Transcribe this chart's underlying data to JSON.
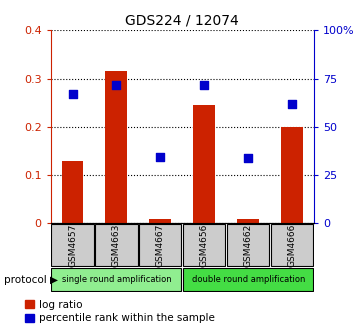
{
  "title": "GDS224 / 12074",
  "samples": [
    "GSM4657",
    "GSM4663",
    "GSM4667",
    "GSM4656",
    "GSM4662",
    "GSM4666"
  ],
  "log_ratio": [
    0.13,
    0.315,
    0.01,
    0.245,
    0.01,
    0.2
  ],
  "percentile_rank_scaled": [
    0.268,
    0.287,
    0.137,
    0.287,
    0.135,
    0.247
  ],
  "bar_color": "#cc2200",
  "scatter_color": "#0000cc",
  "ylim_left": [
    0,
    0.4
  ],
  "ylim_right": [
    0,
    100
  ],
  "yticks_left": [
    0,
    0.1,
    0.2,
    0.3,
    0.4
  ],
  "ytick_labels_left": [
    "0",
    "0.1",
    "0.2",
    "0.3",
    "0.4"
  ],
  "yticks_right": [
    0,
    25,
    50,
    75,
    100
  ],
  "ytick_labels_right": [
    "0",
    "25",
    "50",
    "75",
    "100%"
  ],
  "protocol_groups": [
    {
      "label": "single round amplification",
      "start": 0,
      "end": 3,
      "color": "#90ee90"
    },
    {
      "label": "double round amplification",
      "start": 3,
      "end": 6,
      "color": "#44dd44"
    }
  ],
  "protocol_label": "protocol ▶",
  "legend_log_ratio": "log ratio",
  "legend_percentile": "percentile rank within the sample",
  "background_color": "#ffffff"
}
